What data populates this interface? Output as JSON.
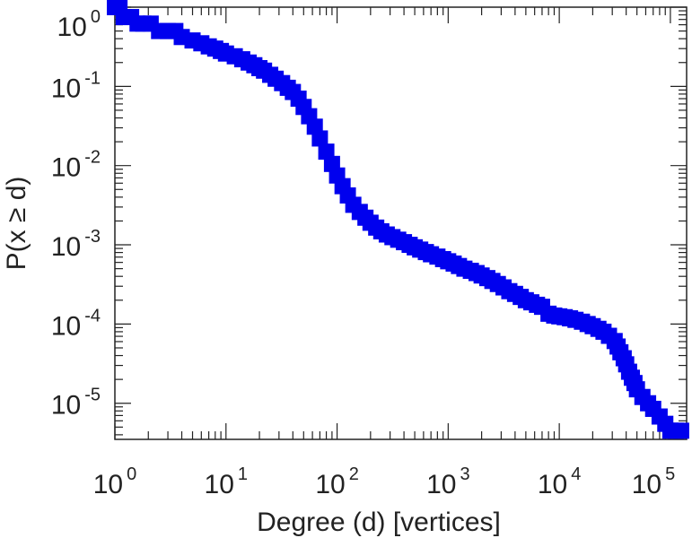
{
  "chart_data": {
    "type": "scatter",
    "title": "",
    "xlabel": "Degree (d) [vertices]",
    "ylabel": "P(x ≥ d)",
    "x_scale": "log",
    "y_scale": "log",
    "xlim": [
      1,
      140000
    ],
    "ylim": [
      3.5e-06,
      1.0
    ],
    "grid": false,
    "marker": "square",
    "color": "#0000ee",
    "x_ticks": [
      {
        "base": "10",
        "exp": "0",
        "value": 1
      },
      {
        "base": "10",
        "exp": "1",
        "value": 10
      },
      {
        "base": "10",
        "exp": "2",
        "value": 100
      },
      {
        "base": "10",
        "exp": "3",
        "value": 1000
      },
      {
        "base": "10",
        "exp": "4",
        "value": 10000
      },
      {
        "base": "10",
        "exp": "5",
        "value": 100000
      }
    ],
    "y_ticks": [
      {
        "base": "10",
        "exp": "0",
        "value": 1
      },
      {
        "base": "10",
        "exp": "-1",
        "value": 0.1
      },
      {
        "base": "10",
        "exp": "-2",
        "value": 0.01
      },
      {
        "base": "10",
        "exp": "-3",
        "value": 0.001
      },
      {
        "base": "10",
        "exp": "-4",
        "value": 0.0001
      },
      {
        "base": "10",
        "exp": "-5",
        "value": 1e-05
      }
    ],
    "series": [
      {
        "x": [
          1.0,
          1.1,
          1.2,
          1.4,
          1.6,
          1.8,
          2.1,
          2.5,
          3.0,
          3.5,
          4.0,
          5.0,
          6.0,
          7.0,
          8.0,
          9.0,
          10,
          12,
          14,
          16,
          18,
          20,
          22,
          25,
          28,
          32,
          36,
          40,
          45,
          50,
          56,
          63,
          70,
          80,
          90,
          100,
          112,
          125,
          140,
          160,
          180,
          200,
          225,
          250,
          280,
          315,
          355,
          400,
          450,
          500,
          560,
          630,
          700,
          800,
          900,
          1000,
          1120,
          1250,
          1400,
          1600,
          1800,
          2000,
          2250,
          2500,
          2800,
          3150,
          3550,
          4000,
          4500,
          5000,
          5600,
          6300,
          7000,
          8000,
          9000,
          10000,
          11200,
          12500,
          14000,
          16000,
          18000,
          20000,
          22500,
          25000,
          28000,
          31500,
          33500,
          35500,
          38000,
          40000,
          42500,
          45000,
          47500,
          50000,
          56000,
          63000,
          70000,
          80000,
          90000,
          100000,
          112000,
          125000
        ],
        "y": [
          1.0,
          1.0,
          0.75,
          0.75,
          0.62,
          0.62,
          0.62,
          0.5,
          0.5,
          0.5,
          0.42,
          0.38,
          0.35,
          0.32,
          0.3,
          0.28,
          0.26,
          0.24,
          0.22,
          0.2,
          0.185,
          0.17,
          0.158,
          0.14,
          0.125,
          0.11,
          0.096,
          0.085,
          0.07,
          0.055,
          0.042,
          0.031,
          0.022,
          0.015,
          0.0105,
          0.0075,
          0.0055,
          0.0042,
          0.0032,
          0.0026,
          0.0022,
          0.0019,
          0.00165,
          0.00148,
          0.00135,
          0.00125,
          0.00116,
          0.00108,
          0.001,
          0.00093,
          0.00087,
          0.00081,
          0.00076,
          0.00071,
          0.00066,
          0.00062,
          0.00058,
          0.00054,
          0.0005,
          0.00047,
          0.00044,
          0.00041,
          0.00038,
          0.00035,
          0.00032,
          0.00029,
          0.00026,
          0.00024,
          0.00022,
          0.0002,
          0.000188,
          0.000175,
          0.000165,
          0.000135,
          0.000128,
          0.000125,
          0.000122,
          0.000118,
          0.000113,
          0.000107,
          0.0001,
          9.4e-05,
          8.7e-05,
          8e-05,
          7.1e-05,
          6.1e-05,
          5.2e-05,
          4.4e-05,
          3.7e-05,
          3.1e-05,
          2.5e-05,
          2.1e-05,
          1.8e-05,
          1.5e-05,
          1.2e-05,
          1e-05,
          8.5e-06,
          6.8e-06,
          5.5e-06,
          4.5e-06,
          4.5e-06,
          4.5e-06
        ]
      }
    ]
  }
}
